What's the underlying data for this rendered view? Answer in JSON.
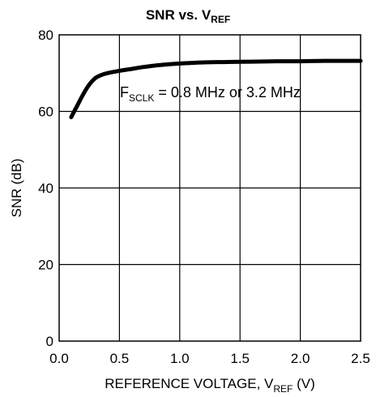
{
  "chart_data": {
    "type": "line",
    "title": {
      "main": "SNR vs. V",
      "sub": "REF"
    },
    "xlabel": {
      "main": "REFERENCE VOLTAGE, V",
      "sub": "REF",
      "tail": " (V)"
    },
    "ylabel": "SNR (dB)",
    "xlim": [
      0,
      2.5
    ],
    "ylim": [
      0,
      80
    ],
    "x_ticks": [
      0,
      0.5,
      1.0,
      1.5,
      2.0,
      2.5
    ],
    "x_tick_labels": [
      "0.0",
      "0.5",
      "1.0",
      "1.5",
      "2.0",
      "2.5"
    ],
    "y_ticks": [
      0,
      20,
      40,
      60,
      80
    ],
    "y_tick_labels": [
      "0",
      "20",
      "40",
      "60",
      "80"
    ],
    "grid": true,
    "annotation": {
      "main": "F",
      "sub": "SCLK",
      "rest": " = 0.8 MHz or 3.2 MHz"
    },
    "series": [
      {
        "x": [
          0.1,
          0.15,
          0.2,
          0.25,
          0.3,
          0.35,
          0.4,
          0.5,
          0.6,
          0.7,
          0.8,
          0.9,
          1.0,
          1.2,
          1.4,
          1.6,
          1.8,
          2.0,
          2.2,
          2.5
        ],
        "y": [
          58.5,
          61.5,
          64.5,
          67.0,
          68.7,
          69.5,
          70.0,
          70.6,
          71.1,
          71.6,
          72.0,
          72.3,
          72.5,
          72.8,
          72.9,
          73.0,
          73.1,
          73.1,
          73.2,
          73.2
        ]
      }
    ]
  }
}
